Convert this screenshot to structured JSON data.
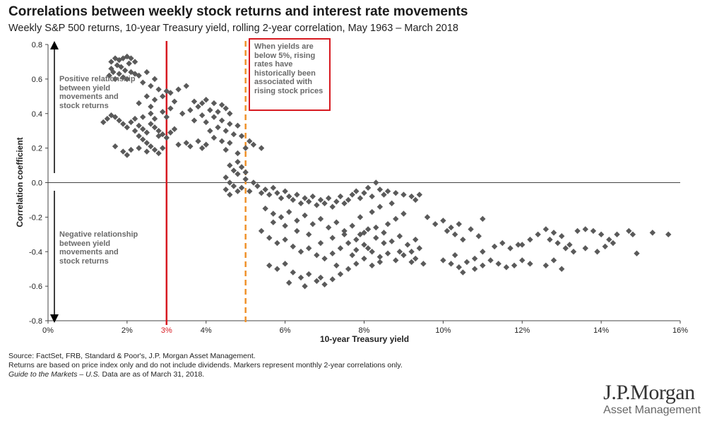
{
  "header": {
    "title": "Correlations between weekly stock returns and interest rate movements",
    "subtitle": "Weekly S&P 500 returns, 10-year Treasury yield, rolling 2-year correlation, May 1963 – March 2018"
  },
  "chart_data": {
    "type": "scatter",
    "xlabel": "10-year Treasury yield",
    "ylabel": "Correlation coefficient",
    "xlim": [
      0,
      16
    ],
    "ylim": [
      -0.8,
      0.8
    ],
    "x_ticks": [
      {
        "value": 0,
        "label": "0%"
      },
      {
        "value": 2,
        "label": "2%"
      },
      {
        "value": 4,
        "label": "4%"
      },
      {
        "value": 6,
        "label": "6%"
      },
      {
        "value": 8,
        "label": "8%"
      },
      {
        "value": 10,
        "label": "10%"
      },
      {
        "value": 12,
        "label": "12%"
      },
      {
        "value": 14,
        "label": "14%"
      },
      {
        "value": 16,
        "label": "16%"
      }
    ],
    "y_ticks": [
      {
        "value": 0.8,
        "label": "0.8"
      },
      {
        "value": 0.6,
        "label": "0.6"
      },
      {
        "value": 0.4,
        "label": "0.4"
      },
      {
        "value": 0.2,
        "label": "0.2"
      },
      {
        "value": 0.0,
        "label": "0.0"
      },
      {
        "value": -0.2,
        "label": "-0.2"
      },
      {
        "value": -0.4,
        "label": "-0.4"
      },
      {
        "value": -0.6,
        "label": "-0.6"
      },
      {
        "value": -0.8,
        "label": "-0.8"
      }
    ],
    "grid": false,
    "marker_color": "#5a5a5a",
    "reference_lines": [
      {
        "x": 3,
        "style": "solid",
        "color": "#d71920",
        "label": "3%"
      },
      {
        "x": 5,
        "style": "dashed",
        "color": "#f0922b",
        "label": ""
      }
    ],
    "annotations": {
      "positive": "Positive relationship between yield movements and stock returns",
      "negative": "Negative relationship between yield movements and stock returns",
      "callout": "When yields are below 5%, rising rates have historically been associated with rising stock prices",
      "callout_color": "#d71920"
    },
    "points": [
      [
        1.6,
        0.7
      ],
      [
        1.7,
        0.72
      ],
      [
        1.8,
        0.71
      ],
      [
        1.9,
        0.72
      ],
      [
        2.0,
        0.73
      ],
      [
        2.1,
        0.72
      ],
      [
        2.2,
        0.7
      ],
      [
        1.6,
        0.66
      ],
      [
        1.75,
        0.68
      ],
      [
        1.85,
        0.67
      ],
      [
        2.05,
        0.69
      ],
      [
        1.55,
        0.62
      ],
      [
        1.65,
        0.64
      ],
      [
        1.8,
        0.63
      ],
      [
        1.95,
        0.65
      ],
      [
        2.1,
        0.64
      ],
      [
        2.2,
        0.63
      ],
      [
        1.7,
        0.6
      ],
      [
        1.9,
        0.61
      ],
      [
        2.0,
        0.6
      ],
      [
        2.3,
        0.62
      ],
      [
        2.5,
        0.64
      ],
      [
        2.7,
        0.6
      ],
      [
        2.4,
        0.58
      ],
      [
        2.6,
        0.56
      ],
      [
        2.8,
        0.54
      ],
      [
        3.0,
        0.53
      ],
      [
        2.9,
        0.5
      ],
      [
        3.1,
        0.52
      ],
      [
        3.3,
        0.54
      ],
      [
        3.5,
        0.56
      ],
      [
        2.5,
        0.5
      ],
      [
        2.7,
        0.48
      ],
      [
        2.3,
        0.46
      ],
      [
        2.6,
        0.44
      ],
      [
        3.2,
        0.47
      ],
      [
        3.7,
        0.47
      ],
      [
        3.9,
        0.46
      ],
      [
        4.0,
        0.48
      ],
      [
        4.2,
        0.46
      ],
      [
        4.4,
        0.45
      ],
      [
        3.8,
        0.44
      ],
      [
        4.1,
        0.42
      ],
      [
        4.3,
        0.41
      ],
      [
        4.5,
        0.43
      ],
      [
        4.6,
        0.4
      ],
      [
        3.6,
        0.42
      ],
      [
        3.4,
        0.4
      ],
      [
        3.9,
        0.39
      ],
      [
        4.2,
        0.38
      ],
      [
        4.4,
        0.36
      ],
      [
        4.0,
        0.35
      ],
      [
        3.7,
        0.36
      ],
      [
        4.6,
        0.34
      ],
      [
        4.8,
        0.33
      ],
      [
        4.3,
        0.32
      ],
      [
        4.5,
        0.3
      ],
      [
        4.1,
        0.3
      ],
      [
        4.7,
        0.28
      ],
      [
        4.9,
        0.27
      ],
      [
        4.2,
        0.26
      ],
      [
        4.4,
        0.24
      ],
      [
        4.6,
        0.23
      ],
      [
        4.0,
        0.22
      ],
      [
        3.8,
        0.24
      ],
      [
        3.5,
        0.23
      ],
      [
        3.3,
        0.22
      ],
      [
        3.6,
        0.21
      ],
      [
        3.9,
        0.2
      ],
      [
        4.5,
        0.19
      ],
      [
        4.8,
        0.17
      ],
      [
        5.0,
        0.2
      ],
      [
        5.1,
        0.24
      ],
      [
        5.2,
        0.22
      ],
      [
        5.4,
        0.2
      ],
      [
        1.4,
        0.35
      ],
      [
        1.5,
        0.37
      ],
      [
        1.6,
        0.39
      ],
      [
        1.7,
        0.38
      ],
      [
        1.8,
        0.36
      ],
      [
        1.9,
        0.34
      ],
      [
        2.0,
        0.32
      ],
      [
        2.1,
        0.35
      ],
      [
        2.2,
        0.37
      ],
      [
        2.3,
        0.33
      ],
      [
        2.4,
        0.31
      ],
      [
        2.5,
        0.29
      ],
      [
        2.6,
        0.34
      ],
      [
        2.7,
        0.32
      ],
      [
        2.8,
        0.3
      ],
      [
        2.9,
        0.28
      ],
      [
        2.2,
        0.3
      ],
      [
        2.3,
        0.27
      ],
      [
        2.4,
        0.25
      ],
      [
        2.5,
        0.23
      ],
      [
        2.6,
        0.21
      ],
      [
        2.7,
        0.19
      ],
      [
        2.8,
        0.17
      ],
      [
        1.7,
        0.21
      ],
      [
        1.9,
        0.18
      ],
      [
        2.0,
        0.16
      ],
      [
        2.1,
        0.19
      ],
      [
        2.3,
        0.2
      ],
      [
        2.5,
        0.18
      ],
      [
        2.9,
        0.2
      ],
      [
        3.0,
        0.26
      ],
      [
        3.1,
        0.29
      ],
      [
        3.2,
        0.31
      ],
      [
        3.0,
        0.38
      ],
      [
        2.9,
        0.41
      ],
      [
        3.1,
        0.43
      ],
      [
        2.4,
        0.38
      ],
      [
        2.6,
        0.4
      ],
      [
        2.7,
        0.37
      ],
      [
        2.8,
        0.27
      ],
      [
        4.6,
        0.1
      ],
      [
        4.7,
        0.07
      ],
      [
        4.8,
        0.05
      ],
      [
        4.5,
        0.03
      ],
      [
        4.6,
        0.0
      ],
      [
        4.7,
        -0.02
      ],
      [
        4.5,
        -0.04
      ],
      [
        4.6,
        -0.07
      ],
      [
        4.8,
        -0.05
      ],
      [
        4.9,
        -0.03
      ],
      [
        4.8,
        0.12
      ],
      [
        4.9,
        0.09
      ],
      [
        5.0,
        0.02
      ],
      [
        5.0,
        0.06
      ],
      [
        5.2,
        0.0
      ],
      [
        5.3,
        -0.02
      ],
      [
        5.1,
        -0.05
      ],
      [
        5.4,
        -0.06
      ],
      [
        5.5,
        -0.04
      ],
      [
        5.6,
        -0.07
      ],
      [
        5.7,
        -0.03
      ],
      [
        5.8,
        -0.06
      ],
      [
        5.9,
        -0.09
      ],
      [
        6.0,
        -0.05
      ],
      [
        6.1,
        -0.08
      ],
      [
        6.2,
        -0.1
      ],
      [
        6.3,
        -0.07
      ],
      [
        6.4,
        -0.12
      ],
      [
        6.5,
        -0.09
      ],
      [
        6.6,
        -0.11
      ],
      [
        6.7,
        -0.08
      ],
      [
        6.8,
        -0.13
      ],
      [
        6.9,
        -0.1
      ],
      [
        7.0,
        -0.12
      ],
      [
        7.1,
        -0.09
      ],
      [
        7.2,
        -0.14
      ],
      [
        7.3,
        -0.11
      ],
      [
        7.4,
        -0.08
      ],
      [
        7.5,
        -0.12
      ],
      [
        7.6,
        -0.1
      ],
      [
        7.7,
        -0.07
      ],
      [
        7.8,
        -0.05
      ],
      [
        7.9,
        -0.09
      ],
      [
        8.0,
        -0.06
      ],
      [
        8.1,
        -0.03
      ],
      [
        8.2,
        -0.08
      ],
      [
        8.3,
        0.0
      ],
      [
        8.4,
        -0.04
      ],
      [
        8.5,
        -0.07
      ],
      [
        8.6,
        -0.05
      ],
      [
        8.8,
        -0.06
      ],
      [
        9.0,
        -0.07
      ],
      [
        9.2,
        -0.08
      ],
      [
        9.4,
        -0.07
      ],
      [
        9.3,
        -0.1
      ],
      [
        5.5,
        -0.15
      ],
      [
        5.7,
        -0.18
      ],
      [
        5.9,
        -0.2
      ],
      [
        6.1,
        -0.17
      ],
      [
        6.3,
        -0.22
      ],
      [
        6.5,
        -0.19
      ],
      [
        6.7,
        -0.24
      ],
      [
        6.9,
        -0.21
      ],
      [
        7.1,
        -0.26
      ],
      [
        7.3,
        -0.23
      ],
      [
        7.5,
        -0.28
      ],
      [
        7.7,
        -0.25
      ],
      [
        7.9,
        -0.3
      ],
      [
        8.1,
        -0.27
      ],
      [
        8.3,
        -0.32
      ],
      [
        8.5,
        -0.29
      ],
      [
        8.7,
        -0.34
      ],
      [
        8.9,
        -0.31
      ],
      [
        9.1,
        -0.36
      ],
      [
        9.3,
        -0.33
      ],
      [
        5.4,
        -0.28
      ],
      [
        5.6,
        -0.32
      ],
      [
        5.8,
        -0.35
      ],
      [
        6.0,
        -0.33
      ],
      [
        6.2,
        -0.37
      ],
      [
        6.4,
        -0.4
      ],
      [
        6.6,
        -0.38
      ],
      [
        6.8,
        -0.42
      ],
      [
        7.0,
        -0.44
      ],
      [
        7.2,
        -0.41
      ],
      [
        7.4,
        -0.38
      ],
      [
        7.6,
        -0.35
      ],
      [
        7.8,
        -0.39
      ],
      [
        8.0,
        -0.36
      ],
      [
        8.2,
        -0.4
      ],
      [
        8.4,
        -0.43
      ],
      [
        8.6,
        -0.41
      ],
      [
        8.8,
        -0.45
      ],
      [
        9.0,
        -0.42
      ],
      [
        9.2,
        -0.46
      ],
      [
        5.6,
        -0.48
      ],
      [
        5.8,
        -0.5
      ],
      [
        6.0,
        -0.47
      ],
      [
        6.2,
        -0.52
      ],
      [
        6.4,
        -0.55
      ],
      [
        6.6,
        -0.53
      ],
      [
        6.8,
        -0.57
      ],
      [
        7.0,
        -0.59
      ],
      [
        7.2,
        -0.56
      ],
      [
        7.4,
        -0.53
      ],
      [
        7.6,
        -0.5
      ],
      [
        7.8,
        -0.47
      ],
      [
        8.0,
        -0.44
      ],
      [
        8.2,
        -0.48
      ],
      [
        8.4,
        -0.46
      ],
      [
        6.1,
        -0.58
      ],
      [
        6.5,
        -0.6
      ],
      [
        6.9,
        -0.55
      ],
      [
        7.3,
        -0.48
      ],
      [
        7.7,
        -0.42
      ],
      [
        8.1,
        -0.38
      ],
      [
        8.5,
        -0.35
      ],
      [
        8.9,
        -0.4
      ],
      [
        9.3,
        -0.44
      ],
      [
        9.5,
        -0.47
      ],
      [
        7.5,
        -0.3
      ],
      [
        7.8,
        -0.33
      ],
      [
        8.0,
        -0.29
      ],
      [
        8.3,
        -0.26
      ],
      [
        8.6,
        -0.24
      ],
      [
        8.8,
        -0.21
      ],
      [
        9.0,
        -0.18
      ],
      [
        7.2,
        -0.32
      ],
      [
        6.9,
        -0.35
      ],
      [
        6.6,
        -0.3
      ],
      [
        6.3,
        -0.28
      ],
      [
        6.0,
        -0.25
      ],
      [
        5.7,
        -0.23
      ],
      [
        7.9,
        -0.2
      ],
      [
        8.2,
        -0.17
      ],
      [
        8.4,
        -0.14
      ],
      [
        8.7,
        -0.12
      ],
      [
        9.2,
        -0.4
      ],
      [
        9.4,
        -0.38
      ],
      [
        9.6,
        -0.2
      ],
      [
        9.8,
        -0.24
      ],
      [
        10.0,
        -0.22
      ],
      [
        10.2,
        -0.26
      ],
      [
        10.4,
        -0.24
      ],
      [
        10.1,
        -0.28
      ],
      [
        10.3,
        -0.3
      ],
      [
        10.5,
        -0.33
      ],
      [
        10.7,
        -0.27
      ],
      [
        10.9,
        -0.31
      ],
      [
        11.0,
        -0.21
      ],
      [
        10.0,
        -0.45
      ],
      [
        10.2,
        -0.47
      ],
      [
        10.4,
        -0.49
      ],
      [
        10.6,
        -0.46
      ],
      [
        10.8,
        -0.44
      ],
      [
        10.5,
        -0.52
      ],
      [
        10.8,
        -0.5
      ],
      [
        11.0,
        -0.48
      ],
      [
        11.2,
        -0.45
      ],
      [
        10.3,
        -0.42
      ],
      [
        11.0,
        -0.4
      ],
      [
        11.3,
        -0.37
      ],
      [
        11.5,
        -0.35
      ],
      [
        11.7,
        -0.38
      ],
      [
        11.9,
        -0.36
      ],
      [
        11.4,
        -0.47
      ],
      [
        11.6,
        -0.49
      ],
      [
        11.8,
        -0.48
      ],
      [
        12.0,
        -0.45
      ],
      [
        12.2,
        -0.47
      ],
      [
        12.0,
        -0.36
      ],
      [
        12.2,
        -0.33
      ],
      [
        12.4,
        -0.3
      ],
      [
        12.6,
        -0.27
      ],
      [
        12.8,
        -0.29
      ],
      [
        13.0,
        -0.31
      ],
      [
        12.7,
        -0.33
      ],
      [
        12.9,
        -0.35
      ],
      [
        13.1,
        -0.38
      ],
      [
        13.3,
        -0.4
      ],
      [
        12.6,
        -0.48
      ],
      [
        12.8,
        -0.45
      ],
      [
        13.0,
        -0.5
      ],
      [
        13.4,
        -0.28
      ],
      [
        13.6,
        -0.27
      ],
      [
        13.8,
        -0.28
      ],
      [
        14.0,
        -0.3
      ],
      [
        14.2,
        -0.33
      ],
      [
        14.4,
        -0.3
      ],
      [
        14.1,
        -0.37
      ],
      [
        13.9,
        -0.4
      ],
      [
        14.3,
        -0.35
      ],
      [
        14.7,
        -0.28
      ],
      [
        14.8,
        -0.3
      ],
      [
        14.9,
        -0.41
      ],
      [
        15.3,
        -0.29
      ],
      [
        15.7,
        -0.3
      ],
      [
        13.6,
        -0.38
      ],
      [
        13.2,
        -0.36
      ]
    ]
  },
  "footnote": {
    "source": "Source: FactSet, FRB, Standard & Poor's, J.P. Morgan Asset Management.",
    "note": "Returns are based on price index only and do not include dividends. Markers represent monthly 2-year correlations only.",
    "guide_italic": "Guide to the Markets – U.S.",
    "guide_rest": " Data are as of March 31, 2018."
  },
  "logo": {
    "main": "J.P.Morgan",
    "sub": "Asset Management"
  }
}
